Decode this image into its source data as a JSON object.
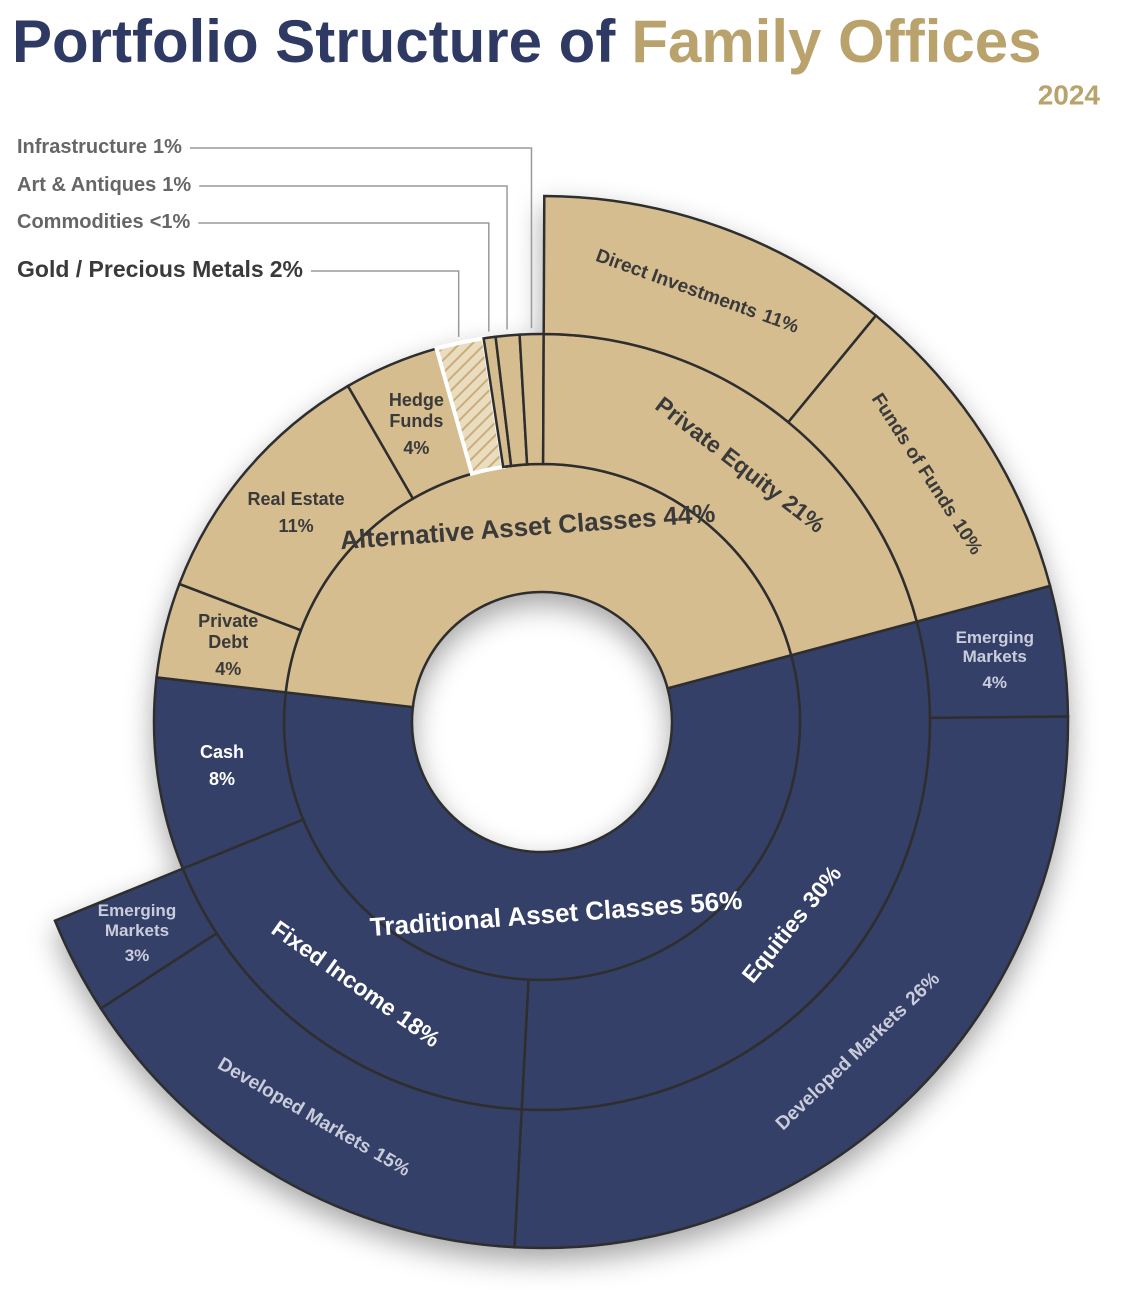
{
  "chart_data": {
    "type": "sunburst",
    "title": "Portfolio Structure of",
    "title_highlight": "Family Offices",
    "subtitle": "2024",
    "nodes": [
      {
        "name": "Traditional Asset Classes",
        "value": 56,
        "value_label": "56%",
        "color": "#343f67",
        "label_color": "#ffffff",
        "children": [
          {
            "name": "Equities",
            "value": 30,
            "value_label": "30%",
            "children": [
              {
                "name": "Emerging Markets",
                "value": 4,
                "value_label": "4%"
              },
              {
                "name": "Developed Markets",
                "value": 26,
                "value_label": "26%"
              }
            ]
          },
          {
            "name": "Fixed Income",
            "value": 18,
            "value_label": "18%",
            "children": [
              {
                "name": "Developed Markets",
                "value": 15,
                "value_label": "15%"
              },
              {
                "name": "Emerging Markets",
                "value": 3,
                "value_label": "3%"
              }
            ]
          },
          {
            "name": "Cash",
            "value": 8,
            "value_label": "8%"
          }
        ]
      },
      {
        "name": "Alternative Asset Classes",
        "value": 44,
        "value_label": "44%",
        "color": "#d5bd8f",
        "label_color": "#3a3a3a",
        "children": [
          {
            "name": "Private Debt",
            "value": 4,
            "value_label": "4%"
          },
          {
            "name": "Real Estate",
            "value": 11,
            "value_label": "11%"
          },
          {
            "name": "Hedge Funds",
            "value": 4,
            "value_label": "4%"
          },
          {
            "name": "Gold / Precious Metals",
            "value": 2,
            "value_label": "2%",
            "pattern": "hatch"
          },
          {
            "name": "Commodities",
            "value": 0.5,
            "value_label": "<1%"
          },
          {
            "name": "Art & Antiques",
            "value": 1,
            "value_label": "1%"
          },
          {
            "name": "Infrastructure",
            "value": 1,
            "value_label": "1%"
          },
          {
            "name": "Private Equity",
            "value": 21,
            "value_label": "21%",
            "children": [
              {
                "name": "Direct Investments",
                "value": 11,
                "value_label": "11%"
              },
              {
                "name": "Funds of Funds",
                "value": 10,
                "value_label": "10%"
              }
            ]
          }
        ]
      }
    ]
  }
}
